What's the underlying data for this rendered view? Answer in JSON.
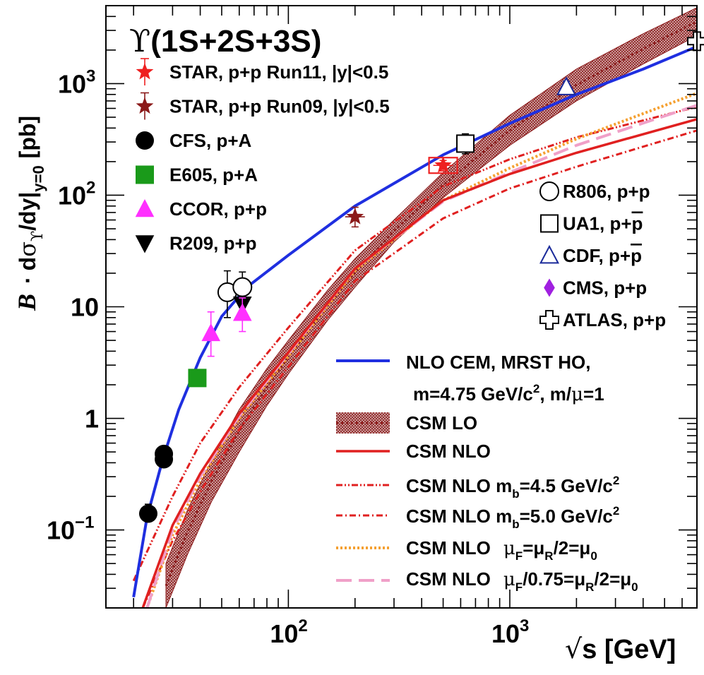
{
  "chart_data": {
    "type": "scatter",
    "title": "ϒ(1S+2S+3S)",
    "title_glyph": "ϒ",
    "title_rest": "(1S+2S+3S)",
    "xlabel": "√s [GeV]",
    "xlabel_root": "√",
    "xlabel_text": "s [GeV]",
    "ylabel": "B · dσϒ/dy|y=0 [pb]",
    "ylabel_parts": {
      "B": "B",
      "dot": "·",
      "d": "d",
      "sigma": "σ",
      "sigma_sub": "ϒ",
      "slash": "/dy|",
      "y_sub": "y=0",
      "unit": "[pb]"
    },
    "x_scale": "log",
    "y_scale": "log",
    "xlim": [
      15,
      7000
    ],
    "ylim": [
      0.02,
      5000
    ],
    "x_ticks": [
      {
        "value": 100,
        "base": "10",
        "exp": "2"
      },
      {
        "value": 1000,
        "base": "10",
        "exp": "3"
      }
    ],
    "y_ticks": [
      {
        "value": 0.1,
        "base": "10",
        "exp": "−1",
        "label": ""
      },
      {
        "value": 1,
        "base": "",
        "exp": "",
        "label": "1"
      },
      {
        "value": 10,
        "base": "",
        "exp": "",
        "label": "10"
      },
      {
        "value": 100,
        "base": "10",
        "exp": "2",
        "label": ""
      },
      {
        "value": 1000,
        "base": "10",
        "exp": "3",
        "label": ""
      }
    ],
    "colors": {
      "cem": "#1f2fe0",
      "csm_band": "#8b1a1a",
      "csm_nlo": "#e02020",
      "scale_orange": "#f5a030",
      "scale_pink": "#f0a0c8",
      "star_red": "#ee2020",
      "star_dark": "#8b1a1a",
      "cfs": "#000000",
      "e605": "#1a9a1a",
      "ccor": "#ff30ff",
      "cdf": "#1a2a9a",
      "cms": "#a020e0"
    },
    "legend_left": [
      {
        "id": "star11",
        "label": "STAR, p+p Run11, |y|<0.5",
        "marker": "star",
        "color": "#ee2020"
      },
      {
        "id": "star09",
        "label": "STAR, p+p Run09, |y|<0.5",
        "marker": "star",
        "color": "#8b1a1a"
      },
      {
        "id": "cfs",
        "label": "CFS, p+A",
        "marker": "circle",
        "color": "#000000"
      },
      {
        "id": "e605",
        "label": "E605, p+A",
        "marker": "square",
        "color": "#1a9a1a"
      },
      {
        "id": "ccor",
        "label": "CCOR, p+p",
        "marker": "triangle-up",
        "color": "#ff30ff"
      },
      {
        "id": "r209",
        "label": "R209, p+p",
        "marker": "triangle-down",
        "color": "#000000"
      }
    ],
    "legend_right": [
      {
        "id": "r806",
        "label": "R806, p+p",
        "marker": "open-circle",
        "color": "#000000"
      },
      {
        "id": "ua1",
        "label": "UA1, p+",
        "pbar": "p",
        "marker": "open-square",
        "color": "#000000"
      },
      {
        "id": "cdf",
        "label": "CDF, p+",
        "pbar": "p",
        "marker": "open-triangle",
        "color": "#1a2a9a"
      },
      {
        "id": "cms",
        "label": "CMS, p+p",
        "marker": "diamond",
        "color": "#a020e0"
      },
      {
        "id": "atlas",
        "label": "ATLAS, p+p",
        "marker": "open-cross",
        "color": "#000000"
      }
    ],
    "legend_curves": [
      {
        "id": "cem",
        "style": "solid",
        "color": "#1f2fe0",
        "line1": "NLO CEM, MRST HO,",
        "line2a": "m=4.75 GeV/c",
        "line2sup": "2",
        "line2b": ", m/",
        "line2mu": "μ",
        "line2c": "=1"
      },
      {
        "id": "csmlo",
        "style": "band",
        "label": "CSM LO"
      },
      {
        "id": "csmnlo",
        "style": "solid",
        "color": "#e02020",
        "label": "CSM NLO"
      },
      {
        "id": "mb45",
        "style": "dashdotdot",
        "color": "#e02020",
        "pre": "CSM NLO m",
        "sub": "b",
        "mid": "=4.5 GeV/c",
        "sup": "2"
      },
      {
        "id": "mb50",
        "style": "dashdot",
        "color": "#e02020",
        "pre": "CSM NLO m",
        "sub": "b",
        "mid": "=5.0 GeV/c",
        "sup": "2"
      },
      {
        "id": "muf",
        "style": "dotted",
        "color": "#f5a030",
        "pre": "CSM NLO",
        "expr": "μ",
        "s1": "F",
        "e2": "=μ",
        "s2": "R",
        "e3": "/2=μ",
        "s3": "0"
      },
      {
        "id": "muf075",
        "style": "longdash",
        "color": "#f0a0c8",
        "pre": "CSM NLO",
        "expr": "μ",
        "s1": "F",
        "e2": "/0.75=μ",
        "s2": "R",
        "e3": "/2=μ",
        "s3": "0"
      }
    ],
    "points": [
      {
        "id": "cfs1",
        "series": "cfs",
        "x": 23.3,
        "y": 0.14,
        "ylo": 0.12,
        "yhi": 0.17
      },
      {
        "id": "cfs2",
        "series": "cfs",
        "x": 27.4,
        "y": 0.43,
        "ylo": 0.39,
        "yhi": 0.47
      },
      {
        "id": "cfs3",
        "series": "cfs",
        "x": 27.4,
        "y": 0.48,
        "ylo": 0.44,
        "yhi": 0.52
      },
      {
        "id": "e605",
        "series": "e605",
        "x": 38.8,
        "y": 2.3,
        "ylo": 2.0,
        "yhi": 2.6
      },
      {
        "id": "ccor",
        "series": "ccor",
        "x": 44.7,
        "y": 5.8,
        "ylo": 3.6,
        "yhi": 9.0
      },
      {
        "id": "r806a",
        "series": "r806",
        "x": 53,
        "y": 13.5,
        "ylo": 8.0,
        "yhi": 21
      },
      {
        "id": "r806b",
        "series": "r806",
        "x": 62,
        "y": 15.0,
        "ylo": 11.0,
        "yhi": 20.5
      },
      {
        "id": "r209",
        "series": "r209",
        "x": 62,
        "y": 10.5,
        "ylo": 9.0,
        "yhi": 12.0
      },
      {
        "id": "ccor2",
        "series": "ccor",
        "x": 62,
        "y": 8.8,
        "ylo": 6.0,
        "yhi": 12.0
      },
      {
        "id": "star09",
        "series": "star09",
        "x": 200,
        "y": 64,
        "ylo": 52,
        "yhi": 78
      },
      {
        "id": "star11",
        "series": "star11",
        "x": 500,
        "y": 185,
        "ylo": 165,
        "yhi": 205
      },
      {
        "id": "ua1",
        "series": "ua1",
        "x": 630,
        "y": 290,
        "ylo": 235,
        "yhi": 355
      },
      {
        "id": "cdf",
        "series": "cdf",
        "x": 1800,
        "y": 930,
        "ylo": 820,
        "yhi": 1050
      },
      {
        "id": "cms",
        "series": "cms",
        "x": 7000,
        "y": 2500,
        "ylo": 2150,
        "yhi": 2850
      },
      {
        "id": "atlas",
        "series": "atlas",
        "x": 7000,
        "y": 2400,
        "ylo": 2100,
        "yhi": 2700
      }
    ],
    "curves": {
      "cem": {
        "x": [
          20,
          23,
          27,
          32,
          40,
          50,
          65,
          100,
          200,
          500,
          1000,
          2000,
          4000,
          7000
        ],
        "y": [
          0.025,
          0.13,
          0.42,
          1.2,
          3.5,
          8.2,
          15,
          29,
          80,
          230,
          440,
          800,
          1350,
          2150
        ]
      },
      "csm_nlo": {
        "x": [
          22,
          30,
          40,
          60,
          100,
          200,
          500,
          1000,
          2000,
          7000
        ],
        "y": [
          0.02,
          0.11,
          0.32,
          1.1,
          3.9,
          22,
          90,
          155,
          240,
          480
        ]
      },
      "mb45": {
        "x": [
          20,
          30,
          40,
          60,
          100,
          200,
          500,
          1000,
          2000,
          7000
        ],
        "y": [
          0.035,
          0.2,
          0.6,
          1.9,
          6.5,
          32,
          120,
          210,
          330,
          620
        ]
      },
      "mb50": {
        "x": [
          22,
          30,
          40,
          60,
          100,
          200,
          500,
          1000,
          2000,
          7000
        ],
        "y": [
          0.02,
          0.08,
          0.22,
          0.8,
          2.9,
          17,
          62,
          115,
          180,
          380
        ]
      },
      "muf": {
        "x": [
          23,
          30,
          40,
          60,
          100,
          200,
          500,
          1000,
          2000,
          7000
        ],
        "y": [
          0.02,
          0.09,
          0.28,
          1.0,
          3.6,
          21,
          90,
          175,
          320,
          820
        ]
      },
      "muf075": {
        "x": [
          23,
          30,
          40,
          60,
          100,
          200,
          500,
          1000,
          2000,
          7000
        ],
        "y": [
          0.02,
          0.1,
          0.3,
          1.05,
          3.8,
          22,
          88,
          160,
          280,
          640
        ]
      },
      "band_x": [
        28,
        35,
        45,
        60,
        80,
        100,
        150,
        200,
        300,
        500,
        1000,
        2000,
        4000,
        7000
      ],
      "band_lo": [
        0.02,
        0.06,
        0.18,
        0.5,
        1.3,
        2.5,
        7.5,
        15,
        38,
        95,
        280,
        700,
        1500,
        2700
      ],
      "band_hi": [
        0.05,
        0.15,
        0.42,
        1.2,
        2.8,
        5.0,
        14,
        27,
        60,
        160,
        520,
        1350,
        2800,
        4800
      ]
    }
  }
}
